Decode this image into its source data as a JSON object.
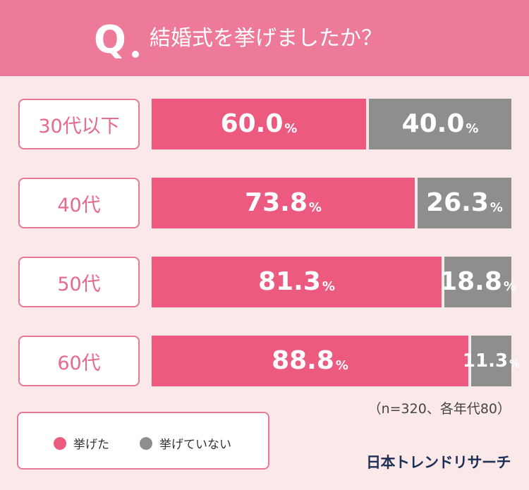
{
  "header": {
    "q_letter": "Q",
    "question": "結婚式を挙げましたか？"
  },
  "chart_data": {
    "type": "bar",
    "orientation": "horizontal-stacked-100",
    "categories": [
      "30代以下",
      "40代",
      "50代",
      "60代"
    ],
    "series": [
      {
        "name": "挙げた",
        "color": "#ec5a80",
        "values": [
          60.0,
          73.8,
          81.3,
          88.8
        ],
        "labels": [
          "60.0",
          "73.8",
          "81.3",
          "88.8"
        ]
      },
      {
        "name": "挙げていない",
        "color": "#8e8e8e",
        "values": [
          40.0,
          26.3,
          18.8,
          11.3
        ],
        "labels": [
          "40.0",
          "26.3",
          "18.8",
          "11.3"
        ]
      }
    ],
    "unit": "%",
    "xlim": [
      0,
      100
    ],
    "legend_position": "bottom-left"
  },
  "note": "（n=320、各年代80）",
  "brand": "日本トレンドリサーチ"
}
